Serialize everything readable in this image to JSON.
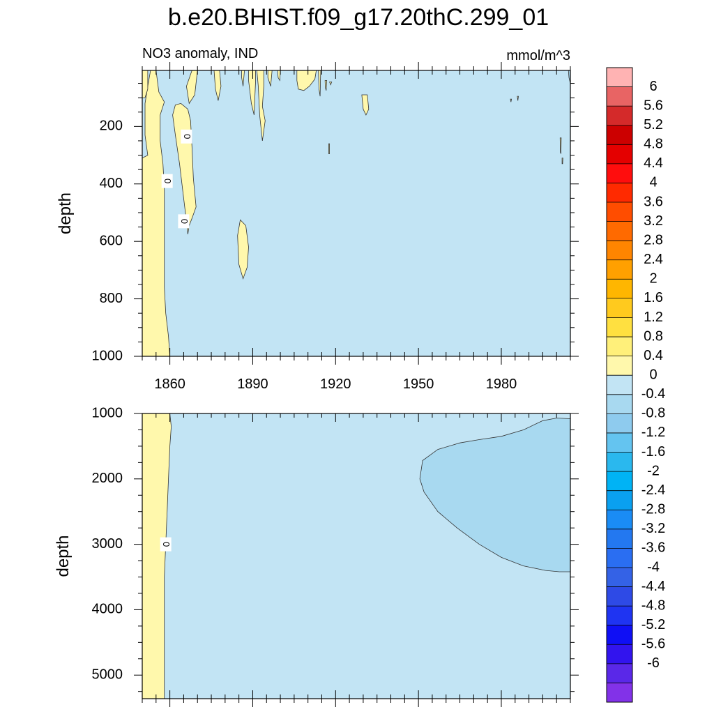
{
  "figure": {
    "title": "b.e20.BHIST.f09_g17.20thC.299_01",
    "left_label": "NO3 anomaly, IND",
    "units": "mmol/m^3"
  },
  "chart_data": [
    {
      "type": "heatmap",
      "subtype": "filled-contour",
      "panel": "upper",
      "ylabel": "depth",
      "y_reversed": true,
      "xlim": [
        1850,
        2005
      ],
      "ylim": [
        1000,
        5
      ],
      "x_ticks": [
        1860,
        1890,
        1920,
        1950,
        1980
      ],
      "x_tick_labels": [
        "1860",
        "1890",
        "1920",
        "1950",
        "1980"
      ],
      "y_ticks": [
        200,
        400,
        600,
        800,
        1000
      ],
      "y_tick_labels": [
        "200",
        "400",
        "600",
        "800",
        "1000"
      ],
      "background_level": "-0.4 to 0",
      "background_color": "#c2e4f4",
      "positive_color": "#fff7aa",
      "contour_labels": [
        {
          "text": "0",
          "x": 1859,
          "y": 390
        },
        {
          "text": "0",
          "x": 1866,
          "y": 235
        },
        {
          "text": "0",
          "x": 1865,
          "y": 530
        }
      ],
      "regions": [
        {
          "level": "0 to 0.4",
          "points": [
            [
              1850,
              310
            ],
            [
              1850,
              1000
            ],
            [
              1860,
              1000
            ],
            [
              1859.5,
              930
            ],
            [
              1858.5,
              850
            ],
            [
              1858,
              760
            ],
            [
              1858,
              600
            ],
            [
              1858,
              420
            ],
            [
              1857.5,
              330
            ],
            [
              1856.5,
              250
            ],
            [
              1856.5,
              160
            ],
            [
              1858,
              115
            ],
            [
              1856,
              80
            ],
            [
              1855,
              5
            ],
            [
              1853,
              5
            ],
            [
              1852,
              60
            ],
            [
              1851,
              120
            ],
            [
              1851,
              230
            ],
            [
              1852,
              300
            ]
          ]
        },
        {
          "level": "0 to 0.4",
          "points": [
            [
              1850,
              5
            ],
            [
              1852,
              5
            ],
            [
              1852,
              70
            ],
            [
              1851,
              100
            ],
            [
              1850,
              100
            ]
          ]
        },
        {
          "level": "0 to 0.4",
          "points": [
            [
              1862,
              125
            ],
            [
              1861,
              160
            ],
            [
              1862,
              230
            ],
            [
              1863.5,
              330
            ],
            [
              1865,
              450
            ],
            [
              1866,
              530
            ],
            [
              1866.5,
              575
            ],
            [
              1867,
              545
            ],
            [
              1868,
              520
            ],
            [
              1869.5,
              480
            ],
            [
              1868.5,
              380
            ],
            [
              1868,
              270
            ],
            [
              1867.5,
              180
            ],
            [
              1866.5,
              140
            ],
            [
              1864,
              120
            ]
          ]
        },
        {
          "level": "0 to 0.4",
          "points": [
            [
              1866,
              60
            ],
            [
              1868,
              5
            ],
            [
              1870,
              5
            ],
            [
              1869,
              90
            ],
            [
              1867,
              120
            ]
          ]
        },
        {
          "level": "0 to 0.4",
          "points": [
            [
              1876,
              5
            ],
            [
              1878,
              5
            ],
            [
              1878.5,
              60
            ],
            [
              1877.5,
              110
            ],
            [
              1876.5,
              70
            ]
          ]
        },
        {
          "level": "0 to 0.4",
          "points": [
            [
              1886,
              5
            ],
            [
              1887,
              5
            ],
            [
              1886.5,
              60
            ],
            [
              1886,
              30
            ]
          ]
        },
        {
          "level": "0 to 0.4",
          "points": [
            [
              1888.5,
              5
            ],
            [
              1891,
              5
            ],
            [
              1891,
              50
            ],
            [
              1890.5,
              160
            ],
            [
              1889.5,
              120
            ],
            [
              1888.5,
              40
            ]
          ]
        },
        {
          "level": "0 to 0.4",
          "points": [
            [
              1891.5,
              5
            ],
            [
              1894,
              5
            ],
            [
              1894,
              60
            ],
            [
              1893.5,
              130
            ],
            [
              1894.5,
              180
            ],
            [
              1893.5,
              250
            ],
            [
              1892.5,
              160
            ],
            [
              1892,
              60
            ]
          ]
        },
        {
          "level": "0 to 0.4",
          "points": [
            [
              1895.5,
              5
            ],
            [
              1897,
              5
            ],
            [
              1896.5,
              60
            ],
            [
              1895.5,
              30
            ]
          ]
        },
        {
          "level": "0 to 0.4",
          "points": [
            [
              1899,
              5
            ],
            [
              1900,
              5
            ],
            [
              1899.8,
              40
            ],
            [
              1899.2,
              30
            ]
          ]
        },
        {
          "level": "0 to 0.4",
          "points": [
            [
              1885.5,
              525
            ],
            [
              1884.5,
              580
            ],
            [
              1885,
              680
            ],
            [
              1886.5,
              730
            ],
            [
              1888,
              690
            ],
            [
              1888.5,
              620
            ],
            [
              1887.5,
              545
            ]
          ]
        },
        {
          "level": "0 to 0.4",
          "points": [
            [
              1906,
              5
            ],
            [
              1913,
              5
            ],
            [
              1912.5,
              35
            ],
            [
              1910.5,
              60
            ],
            [
              1908.5,
              75
            ],
            [
              1906.5,
              70
            ],
            [
              1906,
              40
            ]
          ]
        },
        {
          "level": "0 to 0.4",
          "points": [
            [
              1913.8,
              5
            ],
            [
              1914.6,
              5
            ],
            [
              1914.4,
              95
            ],
            [
              1914,
              70
            ]
          ]
        },
        {
          "level": "0 to 0.4",
          "points": [
            [
              1916.2,
              40
            ],
            [
              1916.8,
              40
            ],
            [
              1916.6,
              75
            ],
            [
              1916.3,
              65
            ]
          ]
        },
        {
          "level": "0 to 0.4",
          "points": [
            [
              1929.5,
              90
            ],
            [
              1931.5,
              90
            ],
            [
              1932,
              140
            ],
            [
              1931,
              160
            ],
            [
              1930,
              140
            ]
          ]
        },
        {
          "level": "0 to 0.4",
          "points": [
            [
              1917.5,
              260
            ],
            [
              1917.8,
              260
            ],
            [
              1917.8,
              295
            ],
            [
              1917.5,
              295
            ]
          ]
        },
        {
          "level": "0 to 0.4",
          "points": [
            [
              1917.8,
              45
            ],
            [
              1918.6,
              45
            ],
            [
              1918.2,
              55
            ]
          ]
        },
        {
          "level": "0 to 0.4",
          "points": [
            [
              1983.3,
              105
            ],
            [
              1983.7,
              105
            ],
            [
              1983.5,
              115
            ]
          ]
        },
        {
          "level": "0 to 0.4",
          "points": [
            [
              1985.8,
              95
            ],
            [
              1986.2,
              95
            ],
            [
              1986,
              110
            ]
          ]
        },
        {
          "level": "0 to 0.4",
          "points": [
            [
              2001.3,
              240
            ],
            [
              2001.7,
              240
            ],
            [
              2001.6,
              295
            ],
            [
              2001.4,
              290
            ]
          ]
        },
        {
          "level": "0 to 0.4",
          "points": [
            [
              2002,
              310
            ],
            [
              2002.3,
              310
            ],
            [
              2002.2,
              330
            ],
            [
              2002,
              330
            ]
          ]
        },
        {
          "level": "-0.8 to -0.4",
          "points": [
            [
              2004.3,
              5
            ],
            [
              2005,
              5
            ],
            [
              2005,
              50
            ],
            [
              2004.5,
              30
            ]
          ]
        }
      ]
    },
    {
      "type": "heatmap",
      "subtype": "filled-contour",
      "panel": "lower",
      "ylabel": "depth",
      "y_reversed": true,
      "xlim": [
        1850,
        2005
      ],
      "ylim": [
        5360,
        1000
      ],
      "x_ticks": [
        1860,
        1890,
        1920,
        1950,
        1980
      ],
      "y_ticks": [
        1000,
        2000,
        3000,
        4000,
        5000
      ],
      "y_tick_labels": [
        "1000",
        "2000",
        "3000",
        "4000",
        "5000"
      ],
      "background_level": "-0.4 to 0",
      "background_color": "#c2e4f4",
      "contour_labels": [
        {
          "text": "0",
          "x": 1858.5,
          "y": 3000
        }
      ],
      "regions": [
        {
          "level": "0 to 0.4",
          "points": [
            [
              1850,
              1000
            ],
            [
              1860,
              1000
            ],
            [
              1860.5,
              1200
            ],
            [
              1860,
              1500
            ],
            [
              1859.5,
              2000
            ],
            [
              1859,
              2500
            ],
            [
              1858.5,
              3000
            ],
            [
              1858,
              3500
            ],
            [
              1858,
              4200
            ],
            [
              1858,
              4800
            ],
            [
              1858,
              5360
            ],
            [
              1850,
              5360
            ]
          ]
        },
        {
          "level": "-0.8 to -0.4",
          "points": [
            [
              2005,
              1080
            ],
            [
              2000,
              1070
            ],
            [
              1995,
              1110
            ],
            [
              1988,
              1250
            ],
            [
              1980,
              1350
            ],
            [
              1972,
              1400
            ],
            [
              1965,
              1450
            ],
            [
              1957,
              1550
            ],
            [
              1951.5,
              1720
            ],
            [
              1950.5,
              2000
            ],
            [
              1952,
              2200
            ],
            [
              1957,
              2500
            ],
            [
              1964,
              2750
            ],
            [
              1972,
              3000
            ],
            [
              1980,
              3200
            ],
            [
              1988,
              3330
            ],
            [
              1996,
              3400
            ],
            [
              2001,
              3420
            ],
            [
              2005,
              3420
            ]
          ]
        }
      ]
    },
    {
      "type": "colorbar",
      "levels": [
        "6",
        "5.6",
        "5.2",
        "4.8",
        "4.4",
        "4",
        "3.6",
        "3.2",
        "2.8",
        "2.4",
        "2",
        "1.6",
        "1.2",
        "0.8",
        "0.4",
        "0",
        "-0.4",
        "-0.8",
        "-1.2",
        "-1.6",
        "-2",
        "-2.4",
        "-2.8",
        "-3.2",
        "-3.6",
        "-4",
        "-4.4",
        "-4.8",
        "-5.2",
        "-5.6",
        "-6"
      ],
      "colors": [
        "#ffb3b3",
        "#e86464",
        "#d42a2a",
        "#cc0000",
        "#e40000",
        "#ff0d0d",
        "#ff2a00",
        "#ff4d00",
        "#ff6a00",
        "#ff8500",
        "#ffa000",
        "#ffb600",
        "#ffca1e",
        "#ffe040",
        "#fff07a",
        "#fff8ac",
        "#c2e4f4",
        "#a8d9f0",
        "#8ecbee",
        "#64c4f0",
        "#2ab8ee",
        "#00b3f5",
        "#0aa0f0",
        "#1a8cf5",
        "#2378f0",
        "#2a6ef2",
        "#3462e6",
        "#2e4ae6",
        "#1f34f2",
        "#0f0ff5",
        "#3214ee",
        "#5a28e8",
        "#8232e8"
      ]
    }
  ]
}
